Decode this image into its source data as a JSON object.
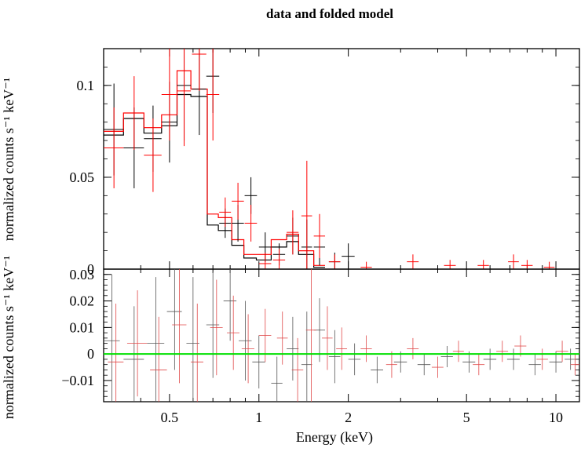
{
  "chart_data": [
    {
      "type": "scatter",
      "panel": "top",
      "title": "data and folded model",
      "xlabel": "",
      "ylabel": "normalized counts s⁻¹ keV⁻¹",
      "x_scale": "log",
      "xlim": [
        0.3,
        12
      ],
      "ylim": [
        0,
        0.12
      ],
      "y_ticks": [
        {
          "value": 0,
          "label": "0"
        },
        {
          "value": 0.05,
          "label": "0.05"
        },
        {
          "value": 0.1,
          "label": "0.1"
        }
      ],
      "series": [
        {
          "color": "#000000",
          "points": [
            {
              "x": 0.325,
              "dx": 0.025,
              "y": 0.076,
              "dy": 0.025
            },
            {
              "x": 0.38,
              "dx": 0.03,
              "y": 0.066,
              "dy": 0.022
            },
            {
              "x": 0.44,
              "dx": 0.03,
              "y": 0.071,
              "dy": 0.018
            },
            {
              "x": 0.5,
              "dx": 0.03,
              "y": 0.08,
              "dy": 0.022
            },
            {
              "x": 0.56,
              "dx": 0.03,
              "y": 0.1,
              "dy": 0.03
            },
            {
              "x": 0.63,
              "dx": 0.035,
              "y": 0.098,
              "dy": 0.025
            },
            {
              "x": 0.7,
              "dx": 0.035,
              "y": 0.105,
              "dy": 0.02
            },
            {
              "x": 0.77,
              "dx": 0.035,
              "y": 0.025,
              "dy": 0.008
            },
            {
              "x": 0.85,
              "dx": 0.04,
              "y": 0.025,
              "dy": 0.01
            },
            {
              "x": 0.94,
              "dx": 0.045,
              "y": 0.04,
              "dy": 0.01
            },
            {
              "x": 1.05,
              "dx": 0.05,
              "y": 0.012,
              "dy": 0.008
            },
            {
              "x": 1.17,
              "dx": 0.055,
              "y": 0.008,
              "dy": 0.006
            },
            {
              "x": 1.3,
              "dx": 0.06,
              "y": 0.018,
              "dy": 0.01
            },
            {
              "x": 1.45,
              "dx": 0.06,
              "y": 0.012,
              "dy": 0.015
            },
            {
              "x": 1.6,
              "dx": 0.07,
              "y": 0.012,
              "dy": 0.01
            },
            {
              "x": 1.8,
              "dx": 0.08,
              "y": 0.004,
              "dy": 0.005
            },
            {
              "x": 2.0,
              "dx": 0.1,
              "y": 0.007,
              "dy": 0.007
            }
          ]
        },
        {
          "color": "#ff0000",
          "points": [
            {
              "x": 0.325,
              "dx": 0.025,
              "y": 0.066,
              "dy": 0.022
            },
            {
              "x": 0.38,
              "dx": 0.03,
              "y": 0.085,
              "dy": 0.02
            },
            {
              "x": 0.44,
              "dx": 0.03,
              "y": 0.062,
              "dy": 0.02
            },
            {
              "x": 0.5,
              "dx": 0.03,
              "y": 0.095,
              "dy": 0.025
            },
            {
              "x": 0.56,
              "dx": 0.03,
              "y": 0.097,
              "dy": 0.03
            },
            {
              "x": 0.63,
              "dx": 0.035,
              "y": 0.117,
              "dy": 0.02
            },
            {
              "x": 0.7,
              "dx": 0.035,
              "y": 0.095,
              "dy": 0.025
            },
            {
              "x": 0.77,
              "dx": 0.035,
              "y": 0.031,
              "dy": 0.008
            },
            {
              "x": 0.85,
              "dx": 0.04,
              "y": 0.037,
              "dy": 0.01
            },
            {
              "x": 0.94,
              "dx": 0.045,
              "y": 0.025,
              "dy": 0.01
            },
            {
              "x": 1.05,
              "dx": 0.05,
              "y": 0.003,
              "dy": 0.006
            },
            {
              "x": 1.17,
              "dx": 0.055,
              "y": 0.005,
              "dy": 0.006
            },
            {
              "x": 1.3,
              "dx": 0.06,
              "y": 0.02,
              "dy": 0.012
            },
            {
              "x": 1.45,
              "dx": 0.06,
              "y": 0.029,
              "dy": 0.03
            },
            {
              "x": 1.6,
              "dx": 0.07,
              "y": 0.018,
              "dy": 0.012
            },
            {
              "x": 1.8,
              "dx": 0.08,
              "y": 0.004,
              "dy": 0.004
            },
            {
              "x": 2.3,
              "dx": 0.1,
              "y": 0.001,
              "dy": 0.003
            },
            {
              "x": 3.3,
              "dx": 0.15,
              "y": 0.004,
              "dy": 0.004
            },
            {
              "x": 4.4,
              "dx": 0.2,
              "y": 0.002,
              "dy": 0.003
            },
            {
              "x": 5.7,
              "dx": 0.25,
              "y": 0.002,
              "dy": 0.003
            },
            {
              "x": 7.2,
              "dx": 0.3,
              "y": 0.004,
              "dy": 0.004
            },
            {
              "x": 8.0,
              "dx": 0.35,
              "y": 0.002,
              "dy": 0.003
            },
            {
              "x": 9.5,
              "dx": 0.4,
              "y": 0.001,
              "dy": 0.003
            }
          ]
        }
      ],
      "model": [
        {
          "color": "#000000",
          "edges": [
            0.3,
            0.35,
            0.41,
            0.47,
            0.53,
            0.59,
            0.67,
            0.73,
            0.81,
            0.89,
            0.98,
            1.1,
            1.24,
            1.36,
            1.53,
            1.67
          ],
          "values": [
            0.073,
            0.082,
            0.074,
            0.078,
            0.095,
            0.094,
            0.024,
            0.021,
            0.013,
            0.006,
            0.005,
            0.012,
            0.015,
            0.008,
            0.001
          ]
        },
        {
          "color": "#ff0000",
          "edges": [
            0.3,
            0.35,
            0.41,
            0.47,
            0.53,
            0.59,
            0.67,
            0.73,
            0.81,
            0.89,
            0.98,
            1.1,
            1.24,
            1.36,
            1.53,
            1.67
          ],
          "values": [
            0.075,
            0.085,
            0.077,
            0.084,
            0.108,
            0.098,
            0.03,
            0.028,
            0.016,
            0.008,
            0.008,
            0.016,
            0.019,
            0.01,
            0.002
          ]
        }
      ]
    },
    {
      "type": "scatter",
      "panel": "bottom",
      "xlabel": "Energy (keV)",
      "ylabel": "normalized counts s⁻¹ keV⁻¹",
      "x_scale": "log",
      "xlim": [
        0.3,
        12
      ],
      "ylim": [
        -0.018,
        0.032
      ],
      "x_ticks": [
        {
          "value": 0.5,
          "label": "0.5"
        },
        {
          "value": 1,
          "label": "1"
        },
        {
          "value": 2,
          "label": "2"
        },
        {
          "value": 5,
          "label": "5"
        },
        {
          "value": 10,
          "label": "10"
        }
      ],
      "y_ticks": [
        {
          "value": -0.01,
          "label": "−0.01"
        },
        {
          "value": 0,
          "label": "0"
        },
        {
          "value": 0.01,
          "label": "0.01"
        },
        {
          "value": 0.02,
          "label": "0.02"
        },
        {
          "value": 0.03,
          "label": "0.03"
        }
      ],
      "zero_line": {
        "value": 0,
        "color": "#00e000"
      },
      "series": [
        {
          "color": "#555555",
          "points": [
            {
              "x": 0.32,
              "dx": 0.02,
              "y": 0.005,
              "dy": 0.025
            },
            {
              "x": 0.38,
              "dx": 0.03,
              "y": -0.002,
              "dy": 0.02
            },
            {
              "x": 0.45,
              "dx": 0.03,
              "y": 0.004,
              "dy": 0.025
            },
            {
              "x": 0.52,
              "dx": 0.03,
              "y": 0.016,
              "dy": 0.022
            },
            {
              "x": 0.6,
              "dx": 0.03,
              "y": 0.004,
              "dy": 0.025
            },
            {
              "x": 0.7,
              "dx": 0.035,
              "y": 0.011,
              "dy": 0.02
            },
            {
              "x": 0.8,
              "dx": 0.04,
              "y": 0.02,
              "dy": 0.015
            },
            {
              "x": 0.9,
              "dx": 0.045,
              "y": 0.005,
              "dy": 0.015
            },
            {
              "x": 1.0,
              "dx": 0.05,
              "y": -0.003,
              "dy": 0.01
            },
            {
              "x": 1.15,
              "dx": 0.05,
              "y": -0.011,
              "dy": 0.01
            },
            {
              "x": 1.3,
              "dx": 0.06,
              "y": 0.002,
              "dy": 0.012
            },
            {
              "x": 1.45,
              "dx": 0.06,
              "y": -0.004,
              "dy": 0.02
            },
            {
              "x": 1.6,
              "dx": 0.07,
              "y": 0.009,
              "dy": 0.012
            },
            {
              "x": 1.8,
              "dx": 0.08,
              "y": -0.001,
              "dy": 0.01
            },
            {
              "x": 2.1,
              "dx": 0.1,
              "y": -0.002,
              "dy": 0.006
            },
            {
              "x": 2.5,
              "dx": 0.12,
              "y": -0.006,
              "dy": 0.005
            },
            {
              "x": 3.0,
              "dx": 0.15,
              "y": -0.003,
              "dy": 0.004
            },
            {
              "x": 3.6,
              "dx": 0.18,
              "y": -0.004,
              "dy": 0.004
            },
            {
              "x": 4.3,
              "dx": 0.2,
              "y": -0.001,
              "dy": 0.004
            },
            {
              "x": 5.1,
              "dx": 0.25,
              "y": -0.003,
              "dy": 0.004
            },
            {
              "x": 6.0,
              "dx": 0.3,
              "y": -0.002,
              "dy": 0.004
            },
            {
              "x": 7.2,
              "dx": 0.35,
              "y": -0.002,
              "dy": 0.004
            },
            {
              "x": 8.5,
              "dx": 0.4,
              "y": -0.004,
              "dy": 0.004
            },
            {
              "x": 10.0,
              "dx": 0.5,
              "y": -0.003,
              "dy": 0.004
            },
            {
              "x": 11.2,
              "dx": 0.5,
              "y": -0.002,
              "dy": 0.004
            }
          ]
        },
        {
          "color": "#e04848",
          "points": [
            {
              "x": 0.33,
              "dx": 0.02,
              "y": -0.003,
              "dy": 0.022
            },
            {
              "x": 0.39,
              "dx": 0.03,
              "y": 0.004,
              "dy": 0.02
            },
            {
              "x": 0.46,
              "dx": 0.03,
              "y": -0.006,
              "dy": 0.02
            },
            {
              "x": 0.54,
              "dx": 0.03,
              "y": 0.011,
              "dy": 0.022
            },
            {
              "x": 0.62,
              "dx": 0.03,
              "y": -0.003,
              "dy": 0.022
            },
            {
              "x": 0.72,
              "dx": 0.035,
              "y": 0.01,
              "dy": 0.018
            },
            {
              "x": 0.82,
              "dx": 0.04,
              "y": 0.008,
              "dy": 0.014
            },
            {
              "x": 0.92,
              "dx": 0.045,
              "y": 0.002,
              "dy": 0.013
            },
            {
              "x": 1.05,
              "dx": 0.05,
              "y": 0.007,
              "dy": 0.01
            },
            {
              "x": 1.2,
              "dx": 0.05,
              "y": 0.006,
              "dy": 0.01
            },
            {
              "x": 1.35,
              "dx": 0.06,
              "y": -0.006,
              "dy": 0.012
            },
            {
              "x": 1.5,
              "dx": 0.06,
              "y": 0.009,
              "dy": 0.03
            },
            {
              "x": 1.7,
              "dx": 0.07,
              "y": 0.006,
              "dy": 0.012
            },
            {
              "x": 1.9,
              "dx": 0.08,
              "y": 0.002,
              "dy": 0.008
            },
            {
              "x": 2.3,
              "dx": 0.1,
              "y": 0.002,
              "dy": 0.005
            },
            {
              "x": 2.8,
              "dx": 0.12,
              "y": -0.004,
              "dy": 0.005
            },
            {
              "x": 3.3,
              "dx": 0.15,
              "y": 0.002,
              "dy": 0.004
            },
            {
              "x": 4.0,
              "dx": 0.18,
              "y": -0.005,
              "dy": 0.004
            },
            {
              "x": 4.7,
              "dx": 0.2,
              "y": 0.001,
              "dy": 0.004
            },
            {
              "x": 5.5,
              "dx": 0.25,
              "y": -0.004,
              "dy": 0.004
            },
            {
              "x": 6.6,
              "dx": 0.3,
              "y": 0.001,
              "dy": 0.004
            },
            {
              "x": 7.6,
              "dx": 0.35,
              "y": 0.003,
              "dy": 0.004
            },
            {
              "x": 9.0,
              "dx": 0.4,
              "y": -0.002,
              "dy": 0.004
            },
            {
              "x": 10.5,
              "dx": 0.5,
              "y": 0.001,
              "dy": 0.004
            },
            {
              "x": 11.6,
              "dx": 0.4,
              "y": -0.004,
              "dy": 0.004
            }
          ]
        }
      ]
    }
  ]
}
